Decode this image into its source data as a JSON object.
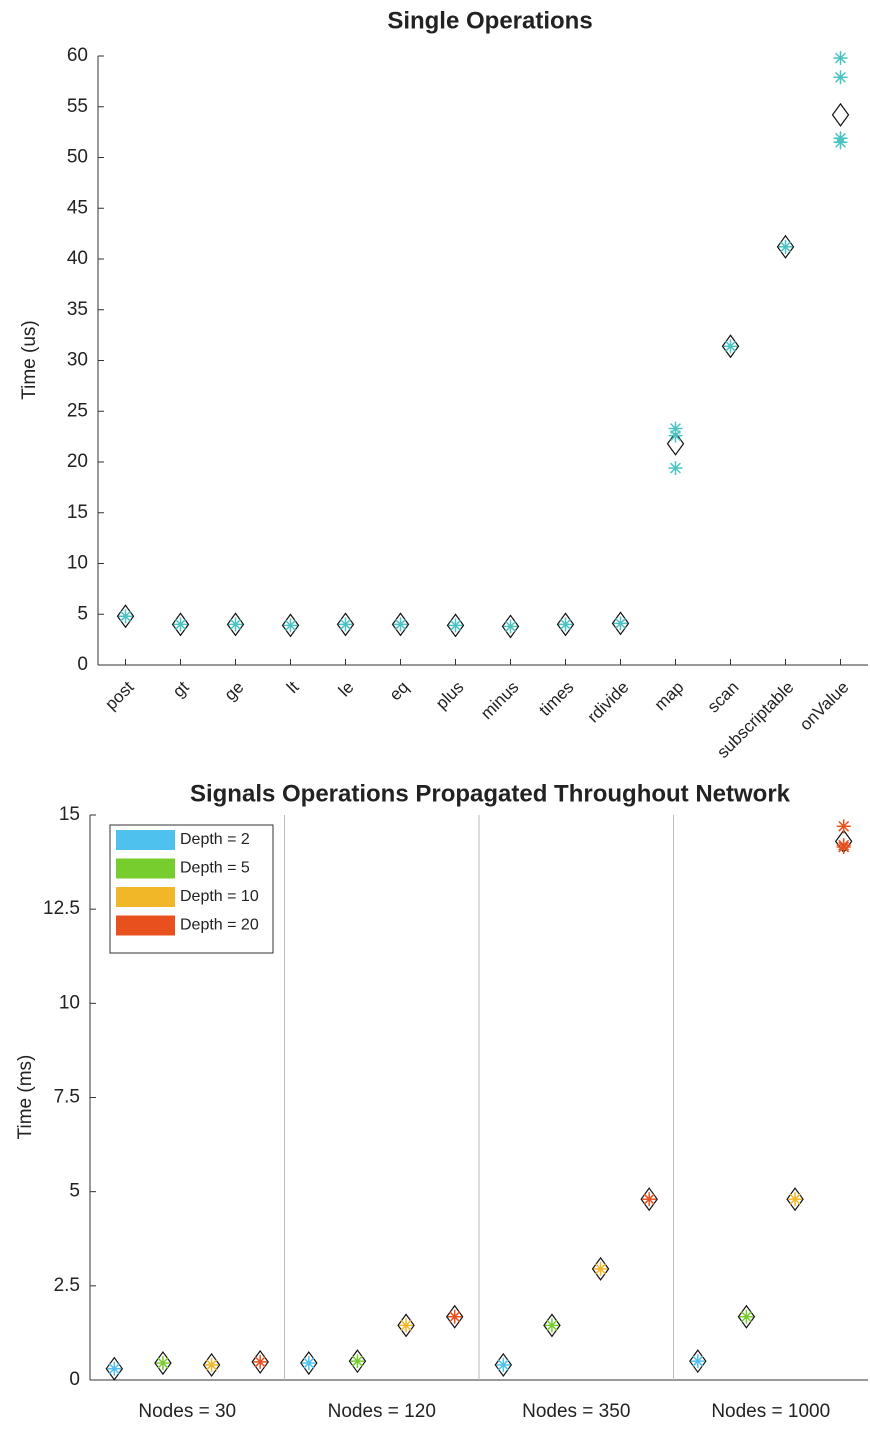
{
  "chart_data": [
    {
      "type": "scatter-category",
      "title": "Single Operations",
      "y_label": "Time (us)",
      "categories": [
        "post",
        "gt",
        "ge",
        "lt",
        "le",
        "eq",
        "plus",
        "minus",
        "times",
        "rdivide",
        "map",
        "scan",
        "subscriptable",
        "onValue"
      ],
      "values": [
        4.8,
        4.0,
        4.0,
        3.9,
        4.0,
        4.0,
        3.9,
        3.8,
        4.0,
        4.1,
        21.8,
        31.4,
        41.2,
        54.2
      ],
      "samples": [
        [
          4.8
        ],
        [
          4.0
        ],
        [
          4.0
        ],
        [
          3.9
        ],
        [
          4.0
        ],
        [
          4.0
        ],
        [
          3.9
        ],
        [
          3.8
        ],
        [
          4.0
        ],
        [
          4.1
        ],
        [
          19.4,
          22.6,
          23.3
        ],
        [
          31.4
        ],
        [
          41.2
        ],
        [
          51.5,
          51.9,
          57.9,
          59.8
        ]
      ],
      "color": "#4cc3c3",
      "ylim": [
        0,
        60
      ],
      "yticks": [
        0,
        5,
        10,
        15,
        20,
        25,
        30,
        35,
        40,
        45,
        50,
        55,
        60
      ]
    },
    {
      "type": "grouped-scatter",
      "title": "Signals Operations Propagated Throughout Network",
      "y_label": "Time (ms)",
      "categories": [
        "Nodes = 30",
        "Nodes = 120",
        "Nodes = 350",
        "Nodes = 1000"
      ],
      "series": [
        {
          "name": "Depth = 2",
          "color": "#4fc1ef",
          "values": [
            0.3,
            0.45,
            0.4,
            0.5
          ],
          "samples": [
            [
              0.3
            ],
            [
              0.45
            ],
            [
              0.4
            ],
            [
              0.5
            ]
          ]
        },
        {
          "name": "Depth = 5",
          "color": "#77cc2e",
          "values": [
            0.45,
            0.5,
            1.45,
            1.68
          ],
          "samples": [
            [
              0.45
            ],
            [
              0.5
            ],
            [
              1.45
            ],
            [
              1.68
            ]
          ]
        },
        {
          "name": "Depth = 10",
          "color": "#f2b728",
          "values": [
            0.4,
            1.45,
            2.95,
            4.8
          ],
          "samples": [
            [
              0.4
            ],
            [
              1.45
            ],
            [
              2.95
            ],
            [
              4.8
            ]
          ]
        },
        {
          "name": "Depth = 20",
          "color": "#e8511e",
          "values": [
            0.48,
            1.68,
            4.8,
            14.3
          ],
          "samples": [
            [
              0.48
            ],
            [
              1.68
            ],
            [
              4.8
            ],
            [
              14.15,
              14.2,
              14.7
            ]
          ]
        }
      ],
      "ylim": [
        0,
        15
      ],
      "yticks": [
        0,
        2.5,
        5,
        7.5,
        10,
        12.5,
        15
      ],
      "legend": "upper-left",
      "grid": true
    }
  ]
}
